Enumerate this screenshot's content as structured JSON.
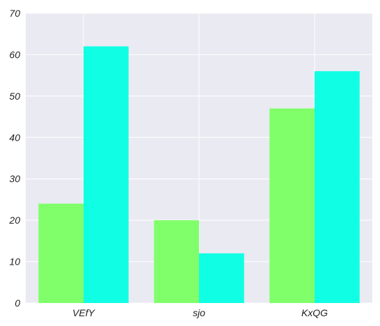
{
  "chart_data": {
    "type": "bar",
    "categories": [
      "VEfY",
      "sjo",
      "KxQG"
    ],
    "series": [
      {
        "values": [
          24,
          20,
          47
        ],
        "color": "#80ff6a"
      },
      {
        "values": [
          62,
          12,
          56
        ],
        "color": "#10ffe4"
      }
    ],
    "ylim": [
      0,
      70
    ],
    "yticks": [
      0,
      10,
      20,
      30,
      40,
      50,
      60,
      70
    ],
    "grid": true,
    "legend": "none",
    "background": "#eaeaf2",
    "grid_color": "#ffffff"
  }
}
